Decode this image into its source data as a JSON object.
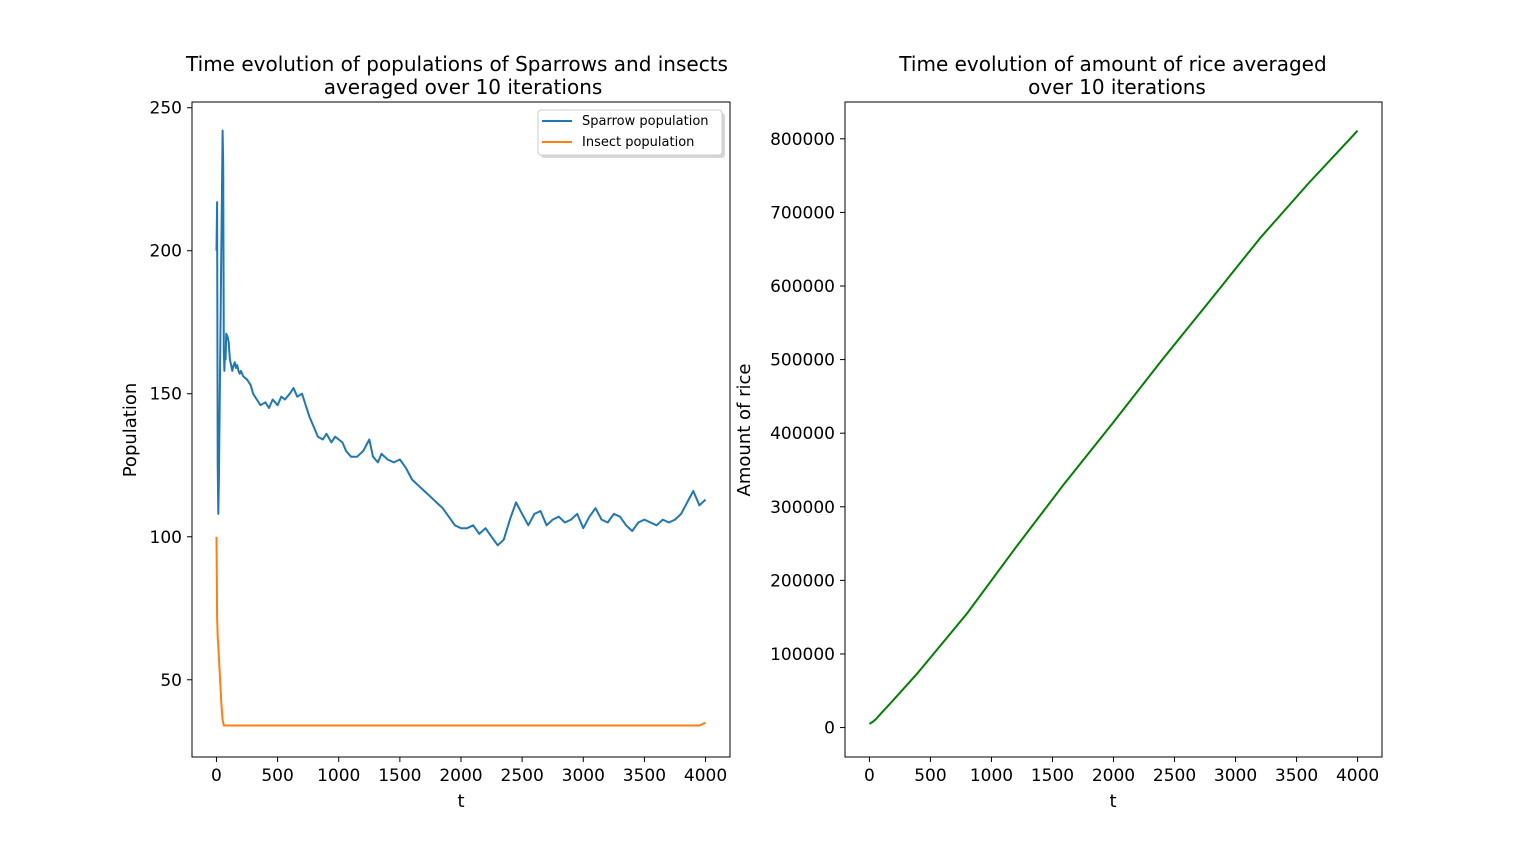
{
  "chart_data": [
    {
      "type": "line",
      "title": [
        "Time evolution of populations of Sparrows and insects",
        "averaged over 10 iterations"
      ],
      "xlabel": "t",
      "ylabel": "Population",
      "xlim": [
        -200,
        4200
      ],
      "ylim": [
        23,
        252
      ],
      "xticks": [
        0,
        500,
        1000,
        1500,
        2000,
        2500,
        3000,
        3500,
        4000
      ],
      "yticks": [
        50,
        100,
        150,
        200,
        250
      ],
      "legend": "top-right",
      "series": [
        {
          "name": "Sparrow population",
          "color": "#1f77b4",
          "x": [
            0,
            5,
            10,
            15,
            20,
            25,
            30,
            35,
            40,
            45,
            50,
            55,
            60,
            65,
            70,
            75,
            80,
            90,
            100,
            110,
            120,
            130,
            140,
            150,
            160,
            170,
            180,
            190,
            200,
            220,
            250,
            280,
            300,
            330,
            360,
            400,
            430,
            460,
            500,
            530,
            560,
            600,
            630,
            660,
            700,
            730,
            760,
            800,
            830,
            870,
            900,
            940,
            970,
            1000,
            1030,
            1060,
            1100,
            1150,
            1200,
            1250,
            1280,
            1320,
            1350,
            1400,
            1450,
            1500,
            1550,
            1600,
            1650,
            1700,
            1750,
            1800,
            1850,
            1900,
            1950,
            2000,
            2050,
            2100,
            2150,
            2200,
            2250,
            2300,
            2350,
            2400,
            2450,
            2500,
            2550,
            2600,
            2650,
            2700,
            2750,
            2800,
            2850,
            2900,
            2950,
            3000,
            3050,
            3100,
            3150,
            3200,
            3250,
            3300,
            3350,
            3400,
            3450,
            3500,
            3550,
            3600,
            3650,
            3700,
            3750,
            3800,
            3850,
            3900,
            3950,
            4000
          ],
          "values": [
            200,
            217,
            125,
            108,
            120,
            140,
            160,
            180,
            200,
            222,
            242,
            230,
            165,
            158,
            165,
            162,
            171,
            170,
            168,
            162,
            160,
            158,
            160,
            161,
            159,
            160,
            158,
            157,
            158,
            156,
            155,
            153,
            150,
            148,
            146,
            147,
            145,
            148,
            146,
            149,
            148,
            150,
            152,
            149,
            150,
            146,
            142,
            138,
            135,
            134,
            136,
            133,
            135,
            134,
            133,
            130,
            128,
            128,
            130,
            134,
            128,
            126,
            129,
            127,
            126,
            127,
            124,
            120,
            118,
            116,
            114,
            112,
            110,
            107,
            104,
            103,
            103,
            104,
            101,
            103,
            100,
            97,
            99,
            106,
            112,
            108,
            104,
            108,
            109,
            104,
            106,
            107,
            105,
            106,
            108,
            103,
            107,
            110,
            106,
            105,
            108,
            107,
            104,
            102,
            105,
            106,
            105,
            104,
            106,
            105,
            106,
            108,
            112,
            116,
            111,
            113
          ]
        },
        {
          "name": "Insect population",
          "color": "#ff7f0e",
          "x": [
            0,
            5,
            10,
            20,
            30,
            40,
            50,
            60,
            70,
            100,
            150,
            200,
            300,
            400,
            500,
            600,
            700,
            800,
            900,
            1000,
            1200,
            1400,
            1600,
            1800,
            2000,
            2200,
            2400,
            2600,
            2800,
            3000,
            3200,
            3400,
            3600,
            3800,
            3950,
            4000
          ],
          "values": [
            100,
            72,
            65,
            58,
            50,
            42,
            36,
            34,
            34,
            34,
            34,
            34,
            34,
            34,
            34,
            34,
            34,
            34,
            34,
            34,
            34,
            34,
            34,
            34,
            34,
            34,
            34,
            34,
            34,
            34,
            34,
            34,
            34,
            34,
            34,
            35
          ]
        }
      ]
    },
    {
      "type": "line",
      "title": [
        "Time evolution of amount of rice averaged",
        "over 10 iterations"
      ],
      "xlabel": "t",
      "ylabel": "Amount of rice",
      "xlim": [
        -200,
        4200
      ],
      "ylim": [
        -40000,
        850000
      ],
      "xticks": [
        0,
        500,
        1000,
        1500,
        2000,
        2500,
        3000,
        3500,
        4000
      ],
      "yticks": [
        0,
        100000,
        200000,
        300000,
        400000,
        500000,
        600000,
        700000,
        800000
      ],
      "series": [
        {
          "color": "#008000",
          "x": [
            0,
            25,
            50,
            100,
            200,
            400,
            800,
            1200,
            1600,
            2000,
            2400,
            2800,
            3200,
            3600,
            4000
          ],
          "values": [
            5000,
            7500,
            11000,
            20000,
            38000,
            75000,
            155000,
            245000,
            332000,
            415000,
            500000,
            582000,
            665000,
            740000,
            811000
          ]
        }
      ]
    }
  ]
}
